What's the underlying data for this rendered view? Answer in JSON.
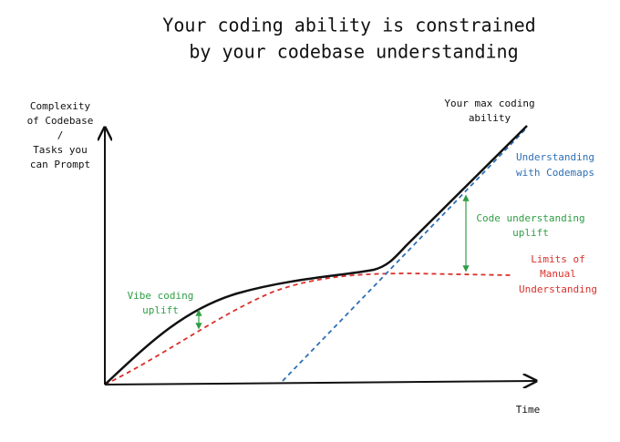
{
  "title": {
    "lines": [
      "Your coding ability is constrained",
      "by your codebase understanding"
    ]
  },
  "y_axis_label": {
    "lines": [
      "Complexity",
      "of Codebase",
      "/",
      "Tasks you",
      "can Prompt"
    ]
  },
  "x_axis_label": "Time",
  "labels": {
    "max_ability": [
      "Your max coding",
      "ability"
    ],
    "codemaps": [
      "Understanding",
      "with Codemaps"
    ],
    "code_uplift": [
      "Code understanding",
      "uplift"
    ],
    "manual": [
      "Limits of",
      "Manual",
      "Understanding"
    ],
    "vibe_uplift": [
      "Vibe coding",
      "uplift"
    ]
  }
}
